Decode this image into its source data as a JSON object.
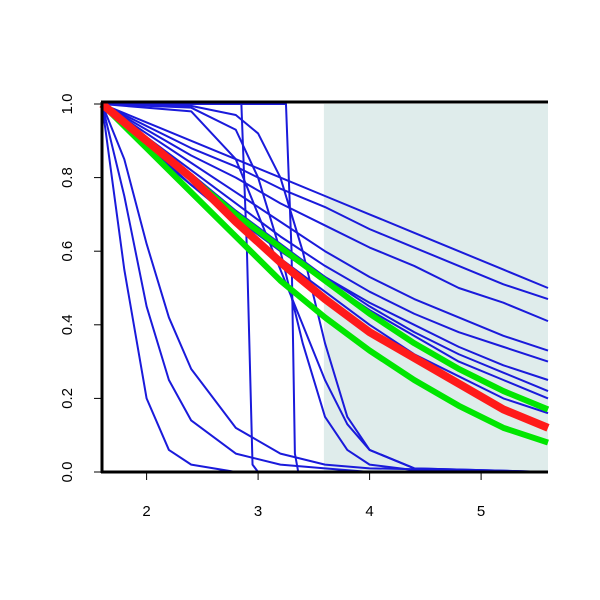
{
  "chart_data": {
    "type": "line",
    "xlim": [
      1.6,
      5.6
    ],
    "ylim": [
      0,
      1
    ],
    "xticks": [
      2,
      3,
      4,
      5
    ],
    "yticks": [
      {
        "value": 0,
        "label": "0.0"
      },
      0.2,
      0.4,
      0.6,
      0.8,
      {
        "value": 1,
        "label": "1.0"
      }
    ],
    "highlight_x": [
      3.59,
      5.6
    ],
    "highlight_color": "#dfeceb",
    "series": [
      {
        "color": "#1a1adb",
        "x": [
          1.6,
          2.0,
          2.4,
          2.8,
          3.2,
          3.6,
          4.0,
          4.4,
          4.8,
          5.2,
          5.6
        ],
        "values": [
          1,
          0.95,
          0.9,
          0.85,
          0.8,
          0.75,
          0.7,
          0.65,
          0.6,
          0.55,
          0.5
        ]
      },
      {
        "color": "#1a1adb",
        "x": [
          1.6,
          2.0,
          2.4,
          2.8,
          3.2,
          3.6,
          4.0,
          4.4,
          4.8,
          5.2,
          5.6
        ],
        "values": [
          1,
          0.94,
          0.88,
          0.83,
          0.77,
          0.72,
          0.66,
          0.61,
          0.56,
          0.51,
          0.47
        ]
      },
      {
        "color": "#1a1adb",
        "x": [
          1.6,
          2.0,
          2.4,
          2.8,
          3.2,
          3.6,
          4.0,
          4.4,
          4.8,
          5.2,
          5.6
        ],
        "values": [
          1,
          0.93,
          0.86,
          0.8,
          0.73,
          0.67,
          0.61,
          0.56,
          0.5,
          0.46,
          0.41
        ]
      },
      {
        "color": "#1a1adb",
        "x": [
          1.6,
          2.0,
          2.4,
          2.8,
          3.2,
          3.6,
          4.0,
          4.4,
          4.8,
          5.2,
          5.6
        ],
        "values": [
          1,
          0.92,
          0.84,
          0.76,
          0.68,
          0.6,
          0.53,
          0.47,
          0.42,
          0.37,
          0.33
        ]
      },
      {
        "color": "#1a1adb",
        "x": [
          1.6,
          2.0,
          2.4,
          2.8,
          3.2,
          3.6,
          4.0,
          4.4,
          4.8,
          5.2,
          5.6
        ],
        "values": [
          1,
          0.91,
          0.82,
          0.73,
          0.64,
          0.56,
          0.49,
          0.43,
          0.38,
          0.34,
          0.3
        ]
      },
      {
        "color": "#1a1adb",
        "x": [
          1.6,
          2.0,
          2.4,
          2.8,
          3.2,
          3.6,
          4.0,
          4.4,
          4.8,
          5.2,
          5.6
        ],
        "values": [
          1,
          0.9,
          0.8,
          0.7,
          0.61,
          0.53,
          0.46,
          0.4,
          0.34,
          0.29,
          0.25
        ]
      },
      {
        "color": "#1a1adb",
        "x": [
          1.6,
          2.0,
          2.4,
          2.8,
          3.2,
          3.6,
          4.0,
          4.4,
          4.8,
          5.2,
          5.6
        ],
        "values": [
          1,
          0.91,
          0.81,
          0.71,
          0.62,
          0.53,
          0.45,
          0.38,
          0.32,
          0.27,
          0.22
        ]
      },
      {
        "color": "#1a1adb",
        "x": [
          1.6,
          2.0,
          2.4,
          2.8,
          3.2,
          3.6,
          4.0,
          4.4,
          4.8,
          5.2,
          5.6
        ],
        "values": [
          1,
          0.89,
          0.78,
          0.68,
          0.58,
          0.49,
          0.4,
          0.32,
          0.26,
          0.2,
          0.16
        ]
      },
      {
        "color": "#1a1adb",
        "x": [
          1.6,
          2.0,
          2.4,
          2.8,
          3.2,
          3.6,
          4.0,
          4.4,
          4.8,
          5.2,
          5.6
        ],
        "values": [
          1,
          0.88,
          0.78,
          0.69,
          0.6,
          0.52,
          0.44,
          0.37,
          0.3,
          0.25,
          0.2
        ]
      },
      {
        "color": "#1a1adb",
        "x": [
          1.6,
          1.8,
          2.0,
          2.2,
          2.4,
          2.8,
          3.2,
          3.6
        ],
        "values": [
          1,
          0.55,
          0.2,
          0.06,
          0.02,
          0,
          0,
          0
        ]
      },
      {
        "color": "#1a1adb",
        "x": [
          1.6,
          1.8,
          2.0,
          2.2,
          2.4,
          2.8,
          3.2,
          3.6,
          4.0,
          5.6
        ],
        "values": [
          1,
          0.75,
          0.45,
          0.25,
          0.14,
          0.05,
          0.02,
          0.01,
          0,
          0
        ]
      },
      {
        "color": "#1a1adb",
        "x": [
          1.6,
          1.8,
          2.0,
          2.2,
          2.4,
          2.8,
          3.2,
          3.6,
          4.0,
          5.6
        ],
        "values": [
          1,
          0.85,
          0.62,
          0.42,
          0.28,
          0.12,
          0.05,
          0.02,
          0.01,
          0
        ]
      },
      {
        "color": "#1a1adb",
        "x": [
          1.6,
          2.85,
          2.9,
          2.95,
          3.0,
          5.6
        ],
        "values": [
          1,
          1,
          0.6,
          0.02,
          0,
          0
        ]
      },
      {
        "color": "#1a1adb",
        "x": [
          1.6,
          3.25,
          3.3,
          3.33,
          3.36,
          5.6
        ],
        "values": [
          1,
          1,
          0.6,
          0.05,
          0,
          0
        ]
      },
      {
        "color": "#1a1adb",
        "x": [
          1.6,
          2.4,
          2.8,
          3.0,
          3.2,
          3.4,
          3.6,
          3.8,
          4.0,
          4.4,
          5.6
        ],
        "values": [
          1,
          0.99,
          0.93,
          0.8,
          0.6,
          0.35,
          0.15,
          0.06,
          0.02,
          0.005,
          0
        ]
      },
      {
        "color": "#1a1adb",
        "x": [
          1.6,
          2.4,
          2.8,
          3.0,
          3.2,
          3.4,
          3.6,
          3.8,
          4.0,
          4.4,
          5.6
        ],
        "values": [
          1,
          0.995,
          0.97,
          0.92,
          0.8,
          0.6,
          0.35,
          0.15,
          0.06,
          0.01,
          0
        ]
      },
      {
        "color": "#1a1adb",
        "x": [
          1.6,
          2.4,
          2.8,
          3.0,
          3.2,
          3.4,
          3.6,
          3.8,
          4.0,
          4.4,
          5.6
        ],
        "values": [
          1,
          0.98,
          0.85,
          0.7,
          0.55,
          0.4,
          0.25,
          0.13,
          0.06,
          0.01,
          0
        ]
      },
      {
        "color": "#00e600",
        "x": [
          1.6,
          2.0,
          2.4,
          2.8,
          3.2,
          3.6,
          4.0,
          4.4,
          4.8,
          5.2,
          5.6
        ],
        "values": [
          1,
          0.88,
          0.76,
          0.64,
          0.52,
          0.42,
          0.33,
          0.25,
          0.18,
          0.12,
          0.08
        ]
      },
      {
        "color": "#00e600",
        "x": [
          1.6,
          2.0,
          2.4,
          2.8,
          3.2,
          3.6,
          4.0,
          4.4,
          4.8,
          5.2,
          5.6
        ],
        "values": [
          1,
          0.9,
          0.8,
          0.7,
          0.61,
          0.52,
          0.43,
          0.35,
          0.28,
          0.22,
          0.17
        ]
      },
      {
        "color": "#ff1a1a",
        "x": [
          1.6,
          2.0,
          2.4,
          2.8,
          3.2,
          3.6,
          4.0,
          4.4,
          4.8,
          5.2,
          5.6
        ],
        "values": [
          1,
          0.9,
          0.8,
          0.68,
          0.57,
          0.47,
          0.38,
          0.31,
          0.24,
          0.17,
          0.12
        ]
      }
    ]
  }
}
